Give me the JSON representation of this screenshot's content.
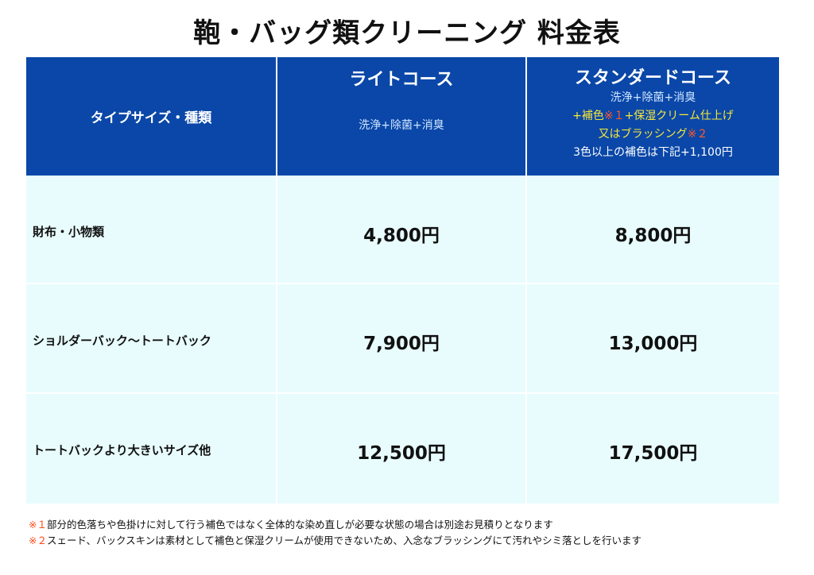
{
  "title": "鞄・バッグ類クリーニング 料金表",
  "header": {
    "type_label": "タイプサイズ・種類",
    "light": {
      "name": "ライトコース",
      "desc": "洗浄+除菌+消臭"
    },
    "standard": {
      "name": "スタンダードコース",
      "line1": "洗浄+除菌+消臭",
      "line2_a": "+補色",
      "line2_mark": "※１",
      "line2_b": "+保湿クリーム仕上げ",
      "line3_a": "又はブラッシング",
      "line3_mark": "※２",
      "line4": "3色以上の補色は下記+1,100円"
    }
  },
  "rows": [
    {
      "label": "財布・小物類",
      "light": "4,800円",
      "standard": "8,800円"
    },
    {
      "label": "ショルダーバック～トートバック",
      "light": "7,900円",
      "standard": "13,000円"
    },
    {
      "label": "トートバックより大きいサイズ他",
      "light": "12,500円",
      "standard": "17,500円"
    }
  ],
  "notes": [
    {
      "mark": "※１",
      "text": "部分的色落ちや色掛けに対して行う補色ではなく全体的な染め直しが必要な状態の場合は別途お見積りとなります"
    },
    {
      "mark": "※２",
      "text": "スェード、バックスキンは素材として補色と保湿クリームが使用できないため、入念なブラッシングにて汚れやシミ落としを行います"
    }
  ],
  "colors": {
    "header_bg": "#0a47a8",
    "body_bg": "#e8fcfd",
    "accent_yellow": "#f7e63a",
    "accent_orange": "#ff5a2a"
  }
}
